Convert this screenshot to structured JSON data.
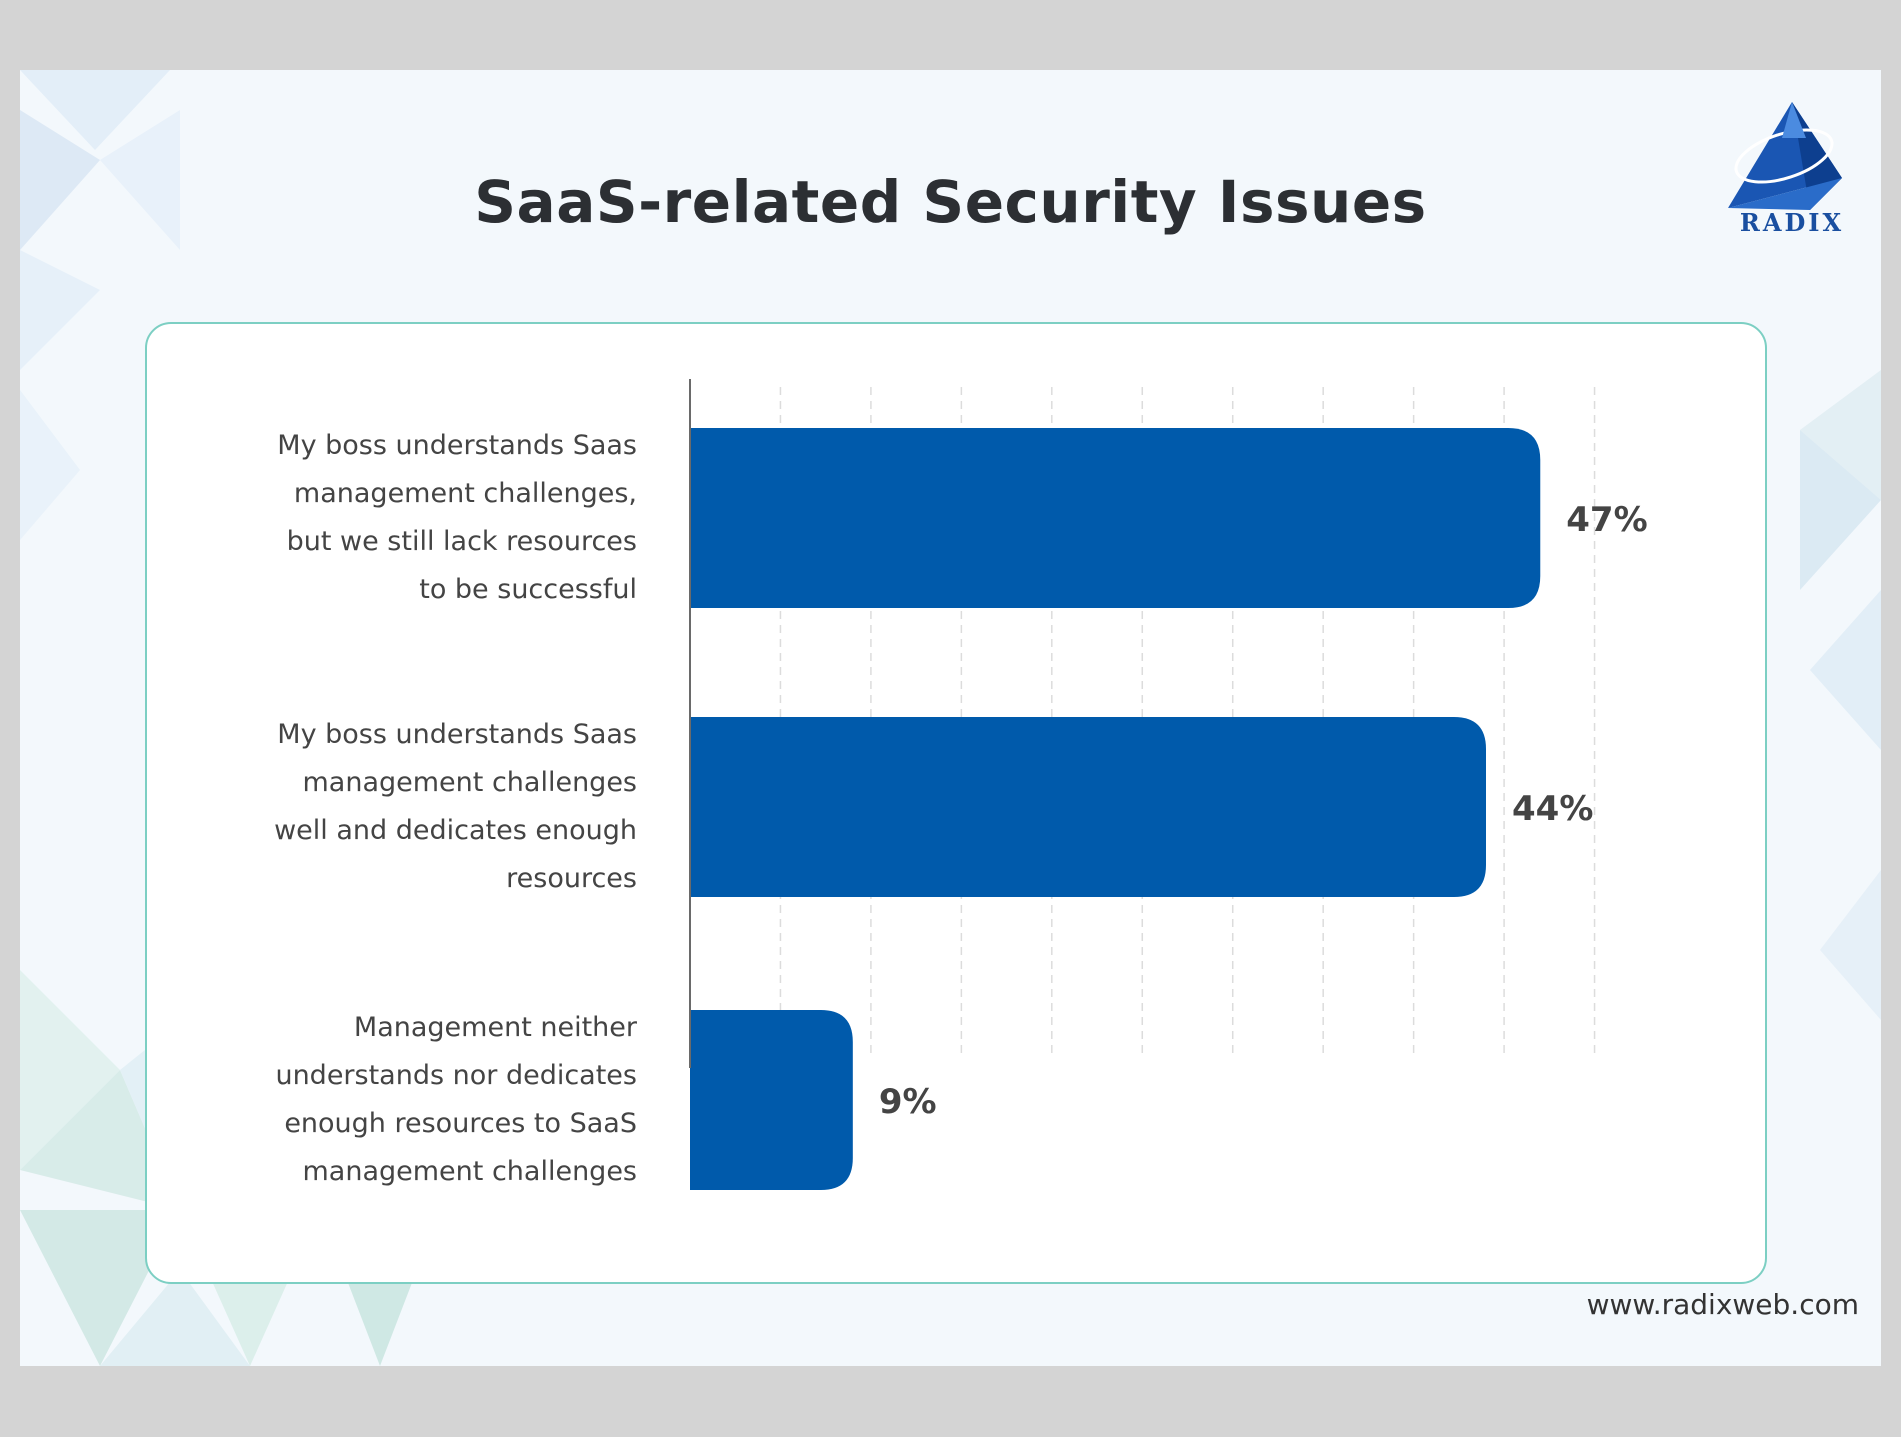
{
  "page": {
    "title_plain": "SaaS-related ",
    "title_highlight": "Security Issues",
    "logo_text": "RADIX",
    "footer_url": "www.radixweb.com",
    "accent_color": "#005aab",
    "highlight_color": "#a9e3d9",
    "panel_border_color": "#7ccfc3"
  },
  "chart_data": {
    "type": "bar",
    "orientation": "horizontal",
    "title": "SaaS-related Security Issues",
    "categories": [
      "My boss understands Saas management challenges, but we still lack resources to be successful",
      "My boss understands Saas management challenges well and dedicates enough resources",
      "Management neither understands nor dedicates enough resources to SaaS management challenges"
    ],
    "category_lines": [
      [
        "My boss understands Saas",
        "management challenges,",
        "but we still lack resources",
        "to be successful"
      ],
      [
        "My boss understands Saas",
        "management challenges",
        "well and dedicates enough",
        "resources"
      ],
      [
        "Management neither",
        "understands nor dedicates",
        "enough resources to SaaS",
        "management challenges"
      ]
    ],
    "values": [
      47,
      44,
      9
    ],
    "value_labels": [
      "47%",
      "44%",
      "9%"
    ],
    "xlim": [
      0,
      55
    ],
    "grid": true,
    "legend": "none",
    "bar_color": "#005aab"
  }
}
